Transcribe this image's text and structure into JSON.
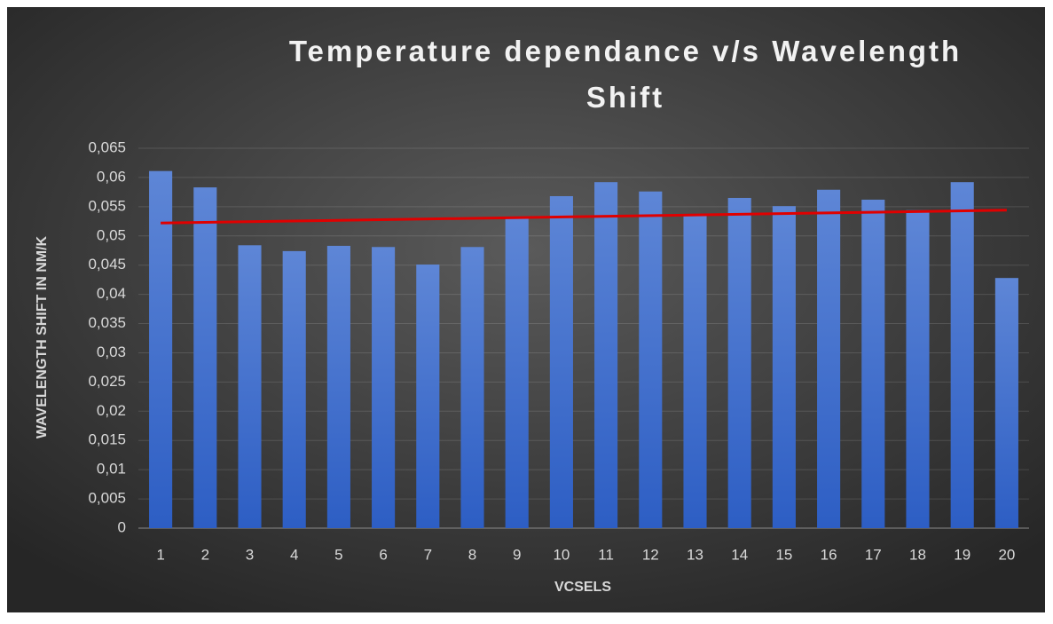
{
  "chart_data": {
    "type": "bar",
    "title": "Temperature dependance v/s Wavelength Shift",
    "x_label": "VCSELS",
    "y_label": "WAVELENGTH SHIFT IN NM/K",
    "categories": [
      "1",
      "2",
      "3",
      "4",
      "5",
      "6",
      "7",
      "8",
      "9",
      "10",
      "11",
      "12",
      "13",
      "14",
      "15",
      "16",
      "17",
      "18",
      "19",
      "20"
    ],
    "values": [
      0.0611,
      0.0583,
      0.0484,
      0.0474,
      0.0483,
      0.0481,
      0.0451,
      0.0481,
      0.053,
      0.0568,
      0.0592,
      0.0576,
      0.0536,
      0.0565,
      0.0551,
      0.0579,
      0.0562,
      0.0544,
      0.0592,
      0.0428
    ],
    "color": "#4a76d0",
    "trendline": {
      "color": "#e00000",
      "values": [
        0.0522,
        0.0544
      ]
    },
    "ylim": [
      0,
      0.065
    ],
    "yticks": [
      0,
      {
        "value": 0.005,
        "label": "0,005"
      },
      {
        "value": 0.01,
        "label": "0,01"
      },
      {
        "value": 0.015,
        "label": "0,015"
      },
      {
        "value": 0.02,
        "label": "0,02"
      },
      {
        "value": 0.025,
        "label": "0,025"
      },
      {
        "value": 0.03,
        "label": "0,03"
      },
      {
        "value": 0.035,
        "label": "0,035"
      },
      {
        "value": 0.04,
        "label": "0,04"
      },
      {
        "value": 0.045,
        "label": "0,045"
      },
      {
        "value": 0.05,
        "label": "0,05"
      },
      {
        "value": 0.055,
        "label": "0,055"
      },
      {
        "value": 0.06,
        "label": "0,06"
      },
      {
        "value": 0.065,
        "label": "0,065"
      }
    ],
    "grid": true
  }
}
